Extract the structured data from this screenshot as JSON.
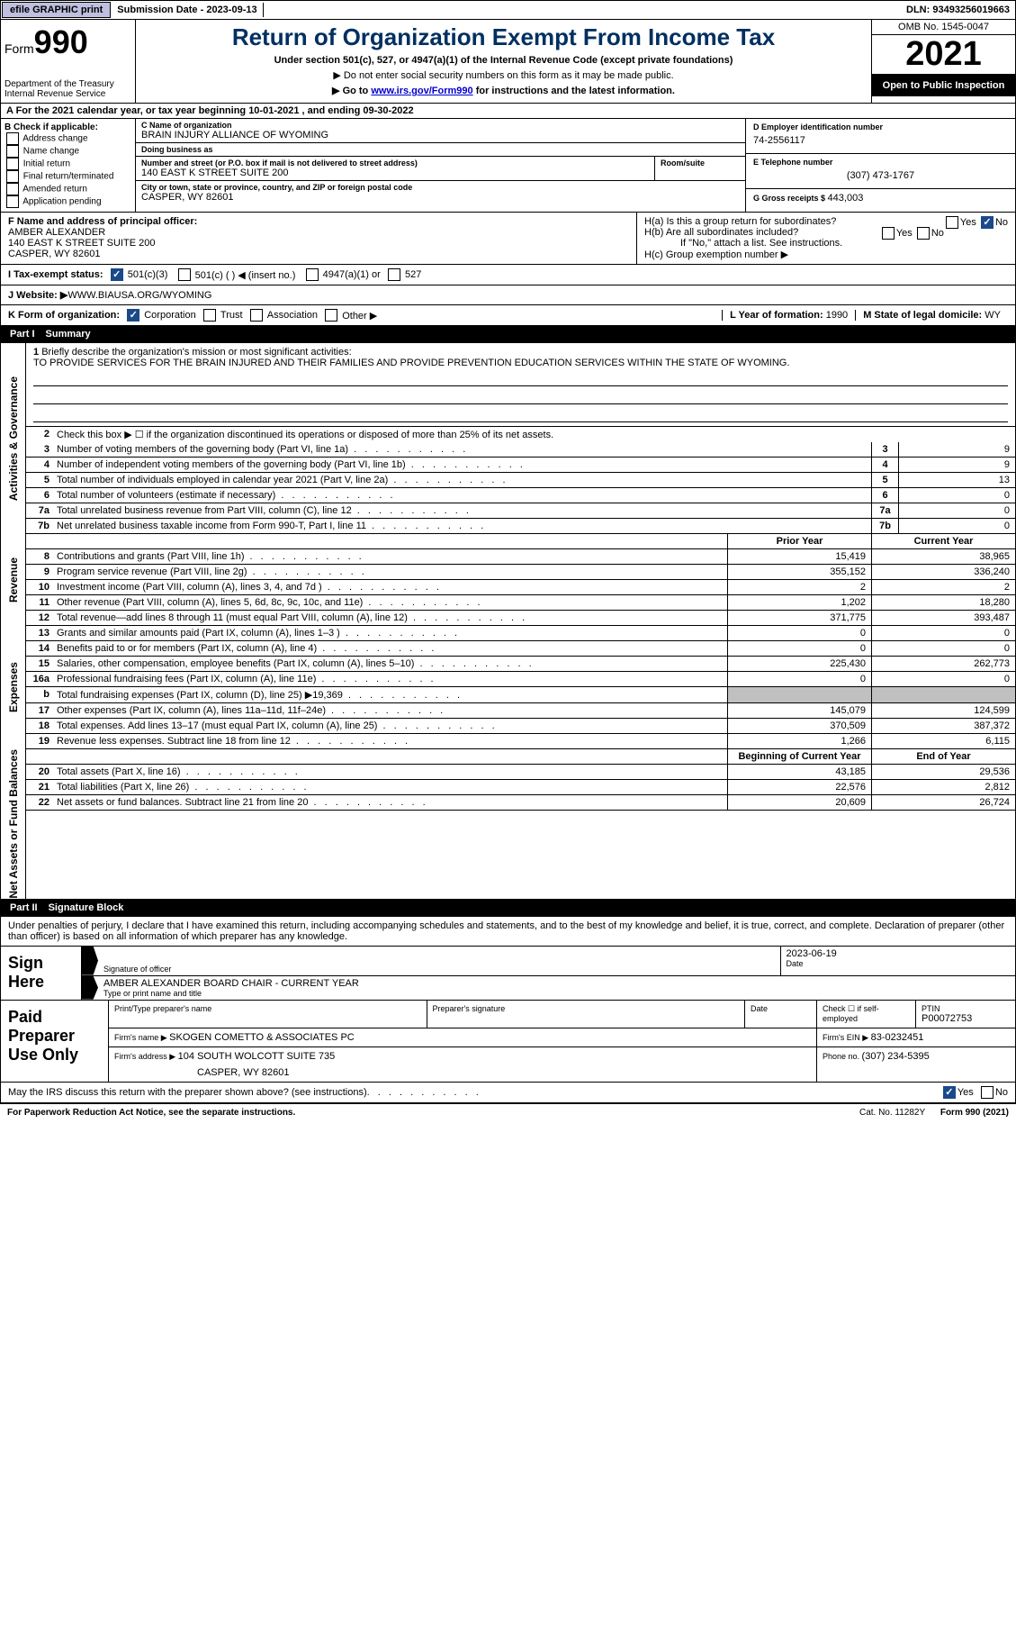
{
  "topbar": {
    "efile": "efile GRAPHIC print",
    "submission_label": "Submission Date - ",
    "submission_date": "2023-09-13",
    "dln_label": "DLN: ",
    "dln": "93493256019663"
  },
  "header": {
    "form_word": "Form",
    "form_num": "990",
    "dept": "Department of the Treasury\nInternal Revenue Service",
    "title": "Return of Organization Exempt From Income Tax",
    "sub1": "Under section 501(c), 527, or 4947(a)(1) of the Internal Revenue Code (except private foundations)",
    "sub2": "▶ Do not enter social security numbers on this form as it may be made public.",
    "sub3_pre": "▶ Go to ",
    "sub3_link": "www.irs.gov/Form990",
    "sub3_post": " for instructions and the latest information.",
    "omb": "OMB No. 1545-0047",
    "year": "2021",
    "open": "Open to Public Inspection"
  },
  "rowA": "A For the 2021 calendar year, or tax year beginning 10-01-2021    , and ending 09-30-2022",
  "colB": {
    "label": "B Check if applicable:",
    "items": [
      "Address change",
      "Name change",
      "Initial return",
      "Final return/terminated",
      "Amended return",
      "Application pending"
    ]
  },
  "colC": {
    "name_lab": "C Name of organization",
    "name": "BRAIN INJURY ALLIANCE OF WYOMING",
    "dba_lab": "Doing business as",
    "dba": "",
    "addr_lab": "Number and street (or P.O. box if mail is not delivered to street address)",
    "addr": "140 EAST K STREET SUITE 200",
    "room_lab": "Room/suite",
    "city_lab": "City or town, state or province, country, and ZIP or foreign postal code",
    "city": "CASPER, WY  82601"
  },
  "colD": {
    "ein_lab": "D Employer identification number",
    "ein": "74-2556117",
    "tel_lab": "E Telephone number",
    "tel": "(307) 473-1767",
    "gross_lab": "G Gross receipts $ ",
    "gross": "443,003"
  },
  "rowF": {
    "lab": "F  Name and address of principal officer:",
    "name": "AMBER ALEXANDER",
    "addr1": "140 EAST K STREET SUITE 200",
    "addr2": "CASPER, WY  82601",
    "ha": "H(a)  Is this a group return for subordinates?",
    "hb": "H(b)  Are all subordinates included?",
    "hb_note": "If \"No,\" attach a list. See instructions.",
    "hc": "H(c)  Group exemption number ▶",
    "yes": "Yes",
    "no": "No"
  },
  "rowI": {
    "lab": "I   Tax-exempt status:",
    "c3": "501(c)(3)",
    "c": "501(c) (  ) ◀ (insert no.)",
    "a4947": "4947(a)(1) or",
    "s527": "527"
  },
  "rowJ": {
    "lab": "J   Website: ▶",
    "val": "  WWW.BIAUSA.ORG/WYOMING"
  },
  "rowK": {
    "lab": "K Form of organization:",
    "corp": "Corporation",
    "trust": "Trust",
    "assoc": "Association",
    "other": "Other ▶",
    "l_lab": "L Year of formation: ",
    "l_val": "1990",
    "m_lab": "M State of legal domicile: ",
    "m_val": "WY"
  },
  "part1": {
    "num": "Part I",
    "title": "Summary"
  },
  "summary": {
    "q1_lab": "Briefly describe the organization's mission or most significant activities:",
    "q1_text": "TO PROVIDE SERVICES FOR THE BRAIN INJURED AND THEIR FAMILIES AND PROVIDE PREVENTION EDUCATION SERVICES WITHIN THE STATE OF WYOMING.",
    "q2": "Check this box ▶ ☐ if the organization discontinued its operations or disposed of more than 25% of its net assets.",
    "rows_simple": [
      {
        "n": "3",
        "t": "Number of voting members of the governing body (Part VI, line 1a)",
        "v": "9"
      },
      {
        "n": "4",
        "t": "Number of independent voting members of the governing body (Part VI, line 1b)",
        "v": "9"
      },
      {
        "n": "5",
        "t": "Total number of individuals employed in calendar year 2021 (Part V, line 2a)",
        "v": "13"
      },
      {
        "n": "6",
        "t": "Total number of volunteers (estimate if necessary)",
        "v": "0"
      },
      {
        "n": "7a",
        "t": "Total unrelated business revenue from Part VIII, column (C), line 12",
        "v": "0"
      },
      {
        "n": "7b",
        "t": "Net unrelated business taxable income from Form 990-T, Part I, line 11",
        "v": "0"
      }
    ],
    "col_prior": "Prior Year",
    "col_current": "Current Year",
    "revenue": [
      {
        "n": "8",
        "t": "Contributions and grants (Part VIII, line 1h)",
        "p": "15,419",
        "c": "38,965"
      },
      {
        "n": "9",
        "t": "Program service revenue (Part VIII, line 2g)",
        "p": "355,152",
        "c": "336,240"
      },
      {
        "n": "10",
        "t": "Investment income (Part VIII, column (A), lines 3, 4, and 7d )",
        "p": "2",
        "c": "2"
      },
      {
        "n": "11",
        "t": "Other revenue (Part VIII, column (A), lines 5, 6d, 8c, 9c, 10c, and 11e)",
        "p": "1,202",
        "c": "18,280"
      },
      {
        "n": "12",
        "t": "Total revenue—add lines 8 through 11 (must equal Part VIII, column (A), line 12)",
        "p": "371,775",
        "c": "393,487"
      }
    ],
    "expenses": [
      {
        "n": "13",
        "t": "Grants and similar amounts paid (Part IX, column (A), lines 1–3 )",
        "p": "0",
        "c": "0"
      },
      {
        "n": "14",
        "t": "Benefits paid to or for members (Part IX, column (A), line 4)",
        "p": "0",
        "c": "0"
      },
      {
        "n": "15",
        "t": "Salaries, other compensation, employee benefits (Part IX, column (A), lines 5–10)",
        "p": "225,430",
        "c": "262,773"
      },
      {
        "n": "16a",
        "t": "Professional fundraising fees (Part IX, column (A), line 11e)",
        "p": "0",
        "c": "0"
      },
      {
        "n": "b",
        "t": "Total fundraising expenses (Part IX, column (D), line 25) ▶19,369",
        "p": "",
        "c": "",
        "shaded": true
      },
      {
        "n": "17",
        "t": "Other expenses (Part IX, column (A), lines 11a–11d, 11f–24e)",
        "p": "145,079",
        "c": "124,599"
      },
      {
        "n": "18",
        "t": "Total expenses. Add lines 13–17 (must equal Part IX, column (A), line 25)",
        "p": "370,509",
        "c": "387,372"
      },
      {
        "n": "19",
        "t": "Revenue less expenses. Subtract line 18 from line 12",
        "p": "1,266",
        "c": "6,115"
      }
    ],
    "col_begin": "Beginning of Current Year",
    "col_end": "End of Year",
    "netassets": [
      {
        "n": "20",
        "t": "Total assets (Part X, line 16)",
        "p": "43,185",
        "c": "29,536"
      },
      {
        "n": "21",
        "t": "Total liabilities (Part X, line 26)",
        "p": "22,576",
        "c": "2,812"
      },
      {
        "n": "22",
        "t": "Net assets or fund balances. Subtract line 21 from line 20",
        "p": "20,609",
        "c": "26,724"
      }
    ],
    "side_ag": "Activities & Governance",
    "side_rev": "Revenue",
    "side_exp": "Expenses",
    "side_net": "Net Assets or Fund Balances"
  },
  "part2": {
    "num": "Part II",
    "title": "Signature Block"
  },
  "sig": {
    "decl": "Under penalties of perjury, I declare that I have examined this return, including accompanying schedules and statements, and to the best of my knowledge and belief, it is true, correct, and complete. Declaration of preparer (other than officer) is based on all information of which preparer has any knowledge.",
    "sign_here": "Sign Here",
    "sig_officer_lab": "Signature of officer",
    "date_lab": "Date",
    "date_val": "2023-06-19",
    "name_val": "AMBER ALEXANDER  BOARD CHAIR - CURRENT YEAR",
    "name_lab": "Type or print name and title"
  },
  "prep": {
    "label": "Paid Preparer Use Only",
    "print_lab": "Print/Type preparer's name",
    "print_val": "",
    "psig_lab": "Preparer's signature",
    "pdate_lab": "Date",
    "check_lab": "Check ☐ if self-employed",
    "ptin_lab": "PTIN",
    "ptin_val": "P00072753",
    "firm_name_lab": "Firm's name      ▶ ",
    "firm_name": "SKOGEN COMETTO & ASSOCIATES PC",
    "firm_ein_lab": "Firm's EIN ▶ ",
    "firm_ein": "83-0232451",
    "firm_addr_lab": "Firm's address ▶ ",
    "firm_addr1": "104 SOUTH WOLCOTT SUITE 735",
    "firm_addr2": "CASPER, WY  82601",
    "phone_lab": "Phone no. ",
    "phone": "(307) 234-5395"
  },
  "discuss": {
    "q": "May the IRS discuss this return with the preparer shown above? (see instructions)",
    "yes": "Yes",
    "no": "No"
  },
  "footer": {
    "left": "For Paperwork Reduction Act Notice, see the separate instructions.",
    "mid": "Cat. No. 11282Y",
    "right": "Form 990 (2021)"
  }
}
